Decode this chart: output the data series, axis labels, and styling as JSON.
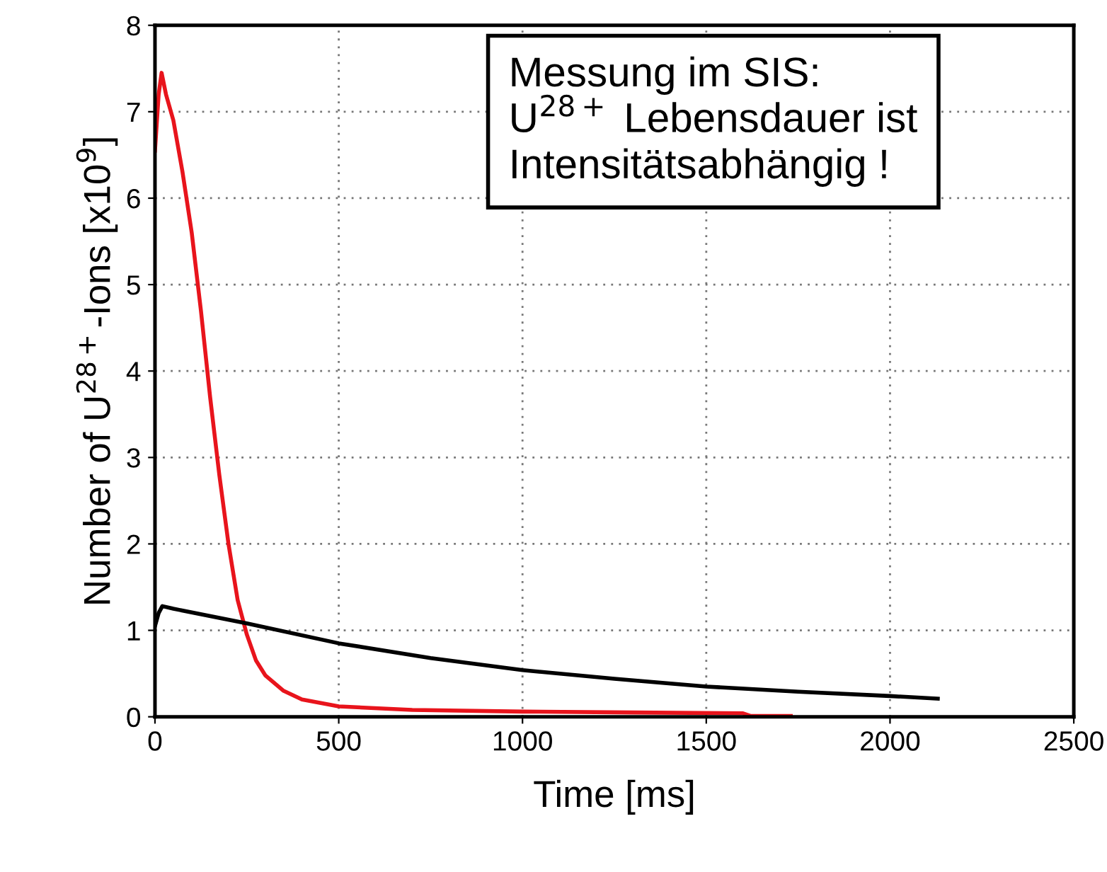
{
  "chart_data": {
    "type": "line",
    "xlabel": "Time [ms]",
    "ylabel": "Number of U$^{28+}$-Ions [x10$^{9}$]",
    "annotations": [
      "Messung im SIS:\nU$^{28+}$ Lebensdauer ist\nIntensitätsabhängig !"
    ],
    "series": [
      {
        "color": "#e8141c",
        "x": [
          0,
          10,
          18,
          30,
          50,
          75,
          100,
          125,
          150,
          175,
          200,
          225,
          250,
          275,
          300,
          350,
          400,
          500,
          700,
          1000,
          1300,
          1600,
          1620,
          1730
        ],
        "values": [
          6.55,
          7.2,
          7.45,
          7.2,
          6.9,
          6.3,
          5.6,
          4.7,
          3.7,
          2.8,
          2.0,
          1.35,
          0.95,
          0.65,
          0.48,
          0.3,
          0.2,
          0.12,
          0.08,
          0.06,
          0.05,
          0.04,
          0.01,
          0.01
        ]
      },
      {
        "color": "#000000",
        "x": [
          0,
          10,
          20,
          50,
          250,
          500,
          750,
          1000,
          1250,
          1500,
          1750,
          2000,
          2130
        ],
        "values": [
          1.05,
          1.2,
          1.28,
          1.25,
          1.08,
          0.85,
          0.68,
          0.54,
          0.44,
          0.35,
          0.29,
          0.24,
          0.21
        ]
      }
    ],
    "xlim": [
      0,
      2500
    ],
    "xticks": [
      0,
      500,
      1000,
      1500,
      2000,
      2500
    ],
    "ylim": [
      0,
      8
    ],
    "yticks": [
      0,
      1,
      2,
      3,
      4,
      5,
      6,
      7,
      8
    ],
    "grid": true,
    "line_style": "solid",
    "marker": "none"
  }
}
